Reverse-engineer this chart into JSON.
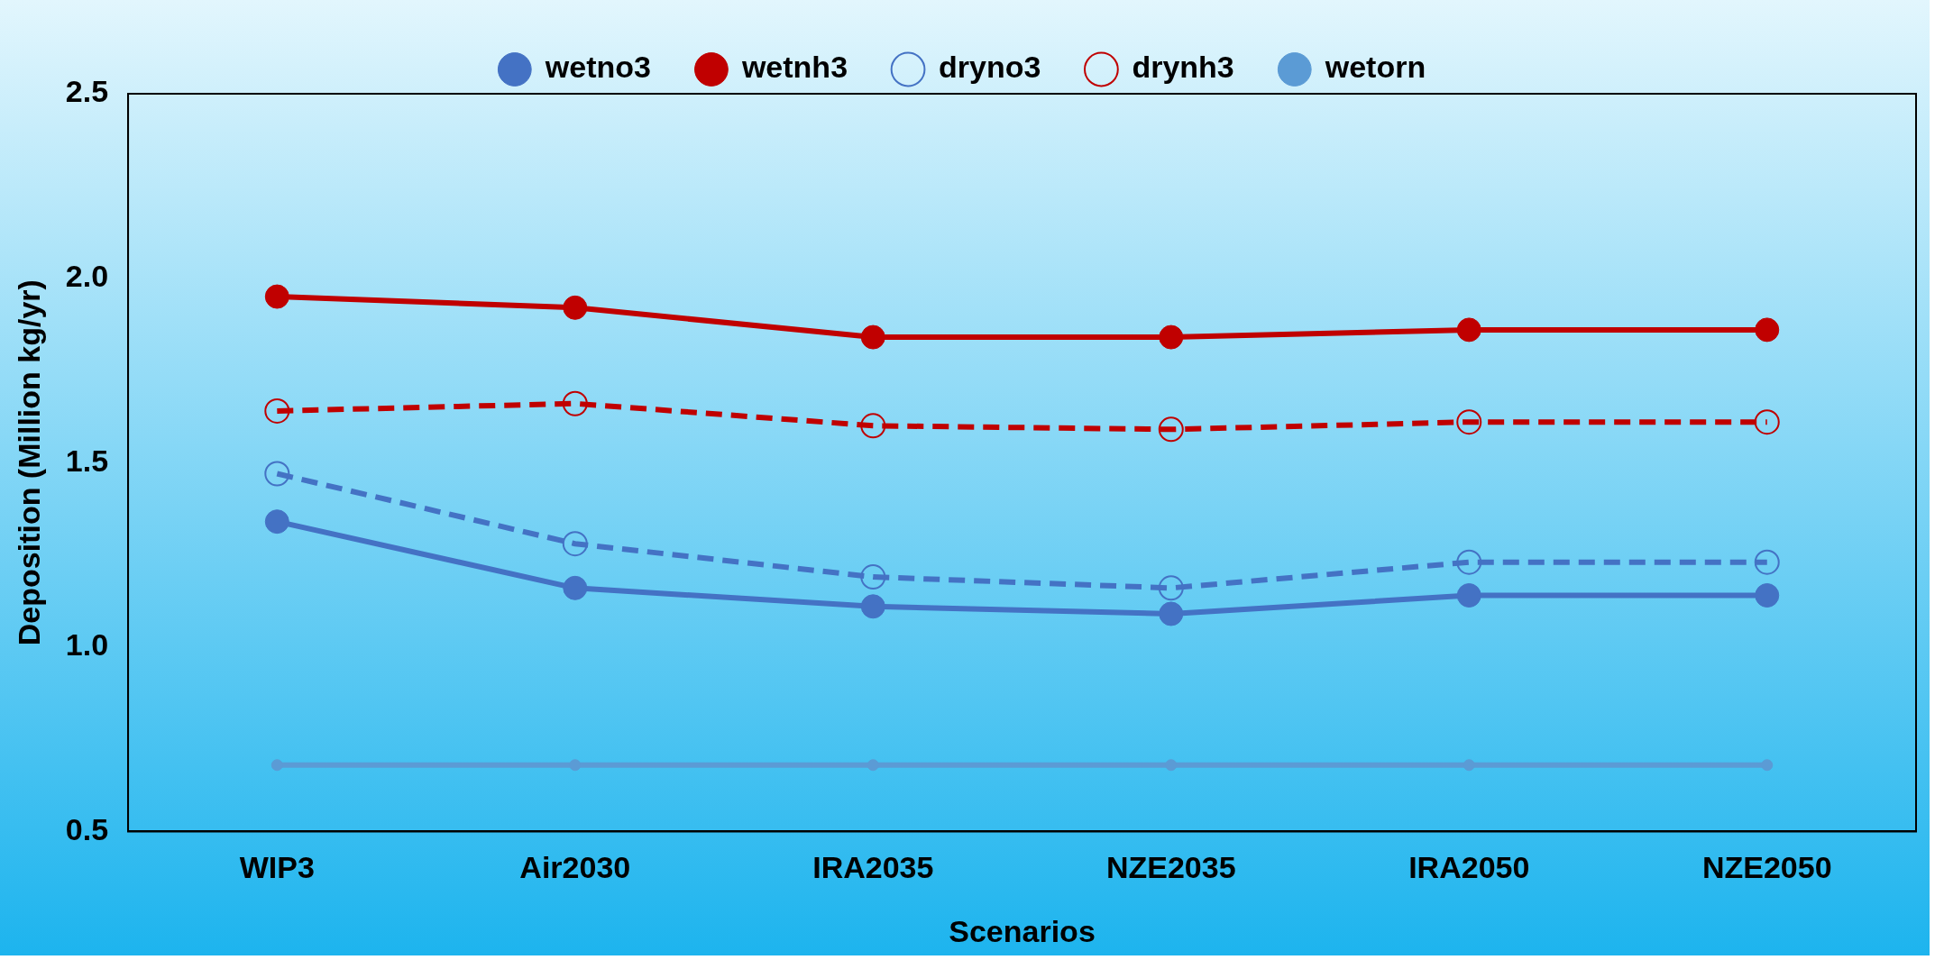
{
  "chart_data": {
    "type": "line",
    "xlabel": "Scenarios",
    "ylabel": "Deposition (Million kg/yr)",
    "categories": [
      "WIP3",
      "Air2030",
      "IRA2035",
      "NZE2035",
      "IRA2050",
      "NZE2050"
    ],
    "series": [
      {
        "name": "wetno3",
        "color": "#4472c4",
        "marker": "circle",
        "line_style": "solid",
        "values": [
          1.34,
          1.16,
          1.11,
          1.09,
          1.14,
          1.14
        ]
      },
      {
        "name": "wetnh3",
        "color": "#c00000",
        "marker": "circle",
        "line_style": "solid",
        "values": [
          1.95,
          1.92,
          1.84,
          1.84,
          1.86,
          1.86
        ]
      },
      {
        "name": "dryno3",
        "color": "#4472c4",
        "marker": "circle",
        "line_style": "dashed",
        "values": [
          1.47,
          1.28,
          1.19,
          1.16,
          1.23,
          1.23
        ]
      },
      {
        "name": "drynh3",
        "color": "#c00000",
        "marker": "circle",
        "line_style": "dashed",
        "values": [
          1.64,
          1.66,
          1.6,
          1.59,
          1.61,
          1.61
        ]
      },
      {
        "name": "wetorn",
        "color": "#5b9bd5",
        "marker": "circle",
        "line_style": "solid",
        "values": [
          0.68,
          0.68,
          0.68,
          0.68,
          0.68,
          0.68
        ]
      }
    ],
    "ylim": [
      0.5,
      2.5
    ],
    "yticks": [
      {
        "value": 0.5,
        "label": "0.5"
      },
      {
        "value": 1.0,
        "label": "1.0"
      },
      {
        "value": 1.5,
        "label": "1.5"
      },
      {
        "value": 2.0,
        "label": "2.0"
      },
      {
        "value": 2.5,
        "label": "2.5"
      }
    ],
    "grid": false,
    "legend": "top"
  }
}
